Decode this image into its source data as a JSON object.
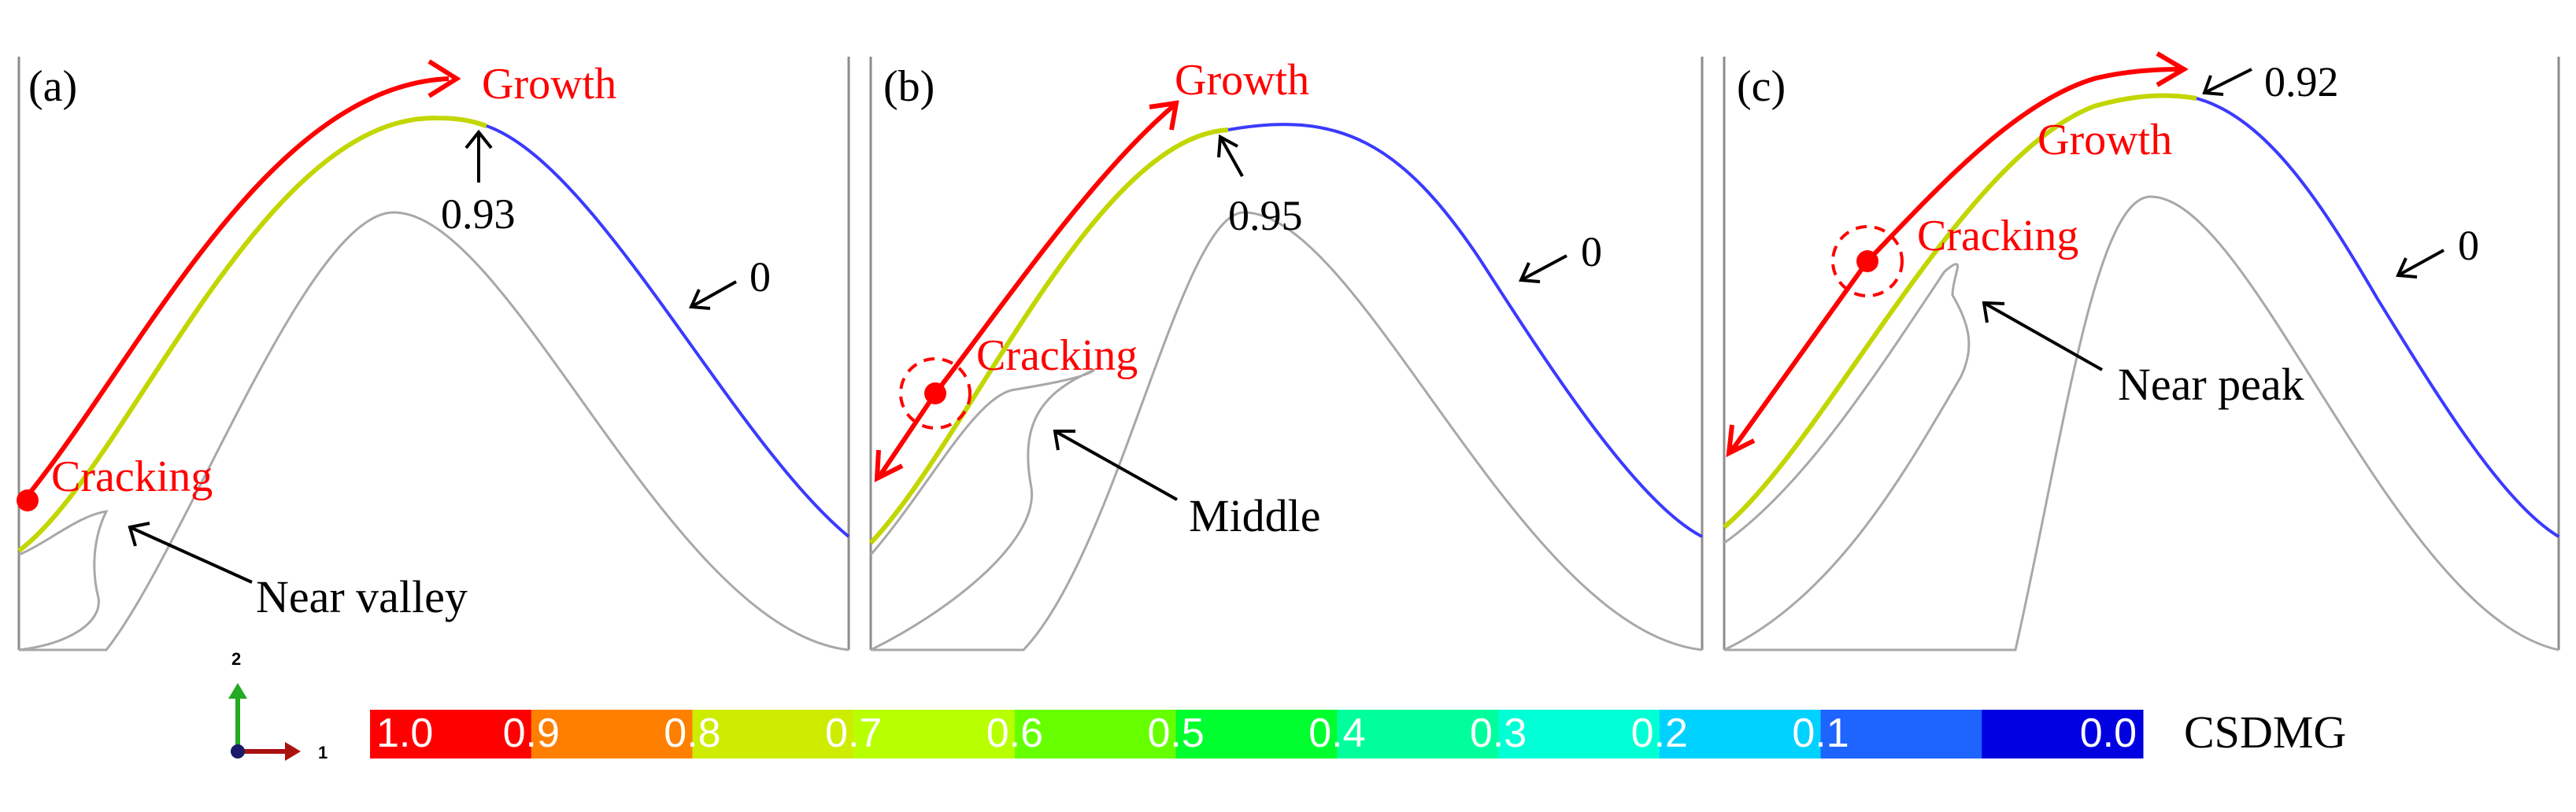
{
  "panels": [
    {
      "id": "a",
      "label": "(a)",
      "growth_label": "Growth",
      "cracking_label": "Cracking",
      "peak_value": "0.93",
      "zero_value": "0",
      "location_label": "Near valley"
    },
    {
      "id": "b",
      "label": "(b)",
      "growth_label": "Growth",
      "cracking_label": "Cracking",
      "peak_value": "0.95",
      "zero_value": "0",
      "location_label": "Middle"
    },
    {
      "id": "c",
      "label": "(c)",
      "growth_label": "Growth",
      "cracking_label": "Cracking",
      "peak_value": "0.92",
      "zero_value": "0",
      "location_label": "Near peak"
    }
  ],
  "axes_triad": {
    "x_label": "1",
    "y_label": "2"
  },
  "colorbar": {
    "variable": "CSDMG",
    "ticks": [
      "1.0",
      "0.9",
      "0.8",
      "0.7",
      "0.6",
      "0.5",
      "0.4",
      "0.3",
      "0.2",
      "0.1",
      "0.0"
    ],
    "colors": [
      "#ff0000",
      "#ff7f00",
      "#cdec00",
      "#b8ff00",
      "#66ff00",
      "#00ff2e",
      "#00ff9c",
      "#00ffd4",
      "#00d2ff",
      "#1e64ff",
      "#0000e0"
    ]
  },
  "colors": {
    "annotation": "#ff0000",
    "outline": "#a8a8a8",
    "pointer": "#000000"
  }
}
